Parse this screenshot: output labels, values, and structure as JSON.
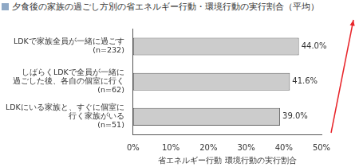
{
  "chart_data": {
    "type": "bar",
    "orientation": "horizontal",
    "title": "夕食後の家族の過ごし方別の省エネルギー行動・環境行動の実行割合（平均）",
    "x_label": "省エネルギー行動 環境行動の実行割合",
    "categories": [
      "LDKで家族全員が一緒に過ごす\n(n=232)",
      "しばらくLDKで全員が一緒に\n過ごした後、各自の個室に行く\n(n=62)",
      "LDKにいる家族と、すぐに個室に\n行く家族がいる\n(n=51)"
    ],
    "values": [
      44.0,
      41.6,
      39.0
    ],
    "value_labels": [
      "44.0%",
      "41.6%",
      "39.0%"
    ],
    "data_labels": true,
    "color": "#cccccc",
    "xlim": [
      0,
      50
    ],
    "xticks": [
      {
        "value": 0,
        "label": "0%"
      },
      {
        "value": 10,
        "label": "10%"
      },
      {
        "value": 20,
        "label": "20%"
      },
      {
        "value": 30,
        "label": "30%"
      },
      {
        "value": 40,
        "label": "40%"
      },
      {
        "value": 50,
        "label": "50%"
      }
    ],
    "grid": false
  }
}
